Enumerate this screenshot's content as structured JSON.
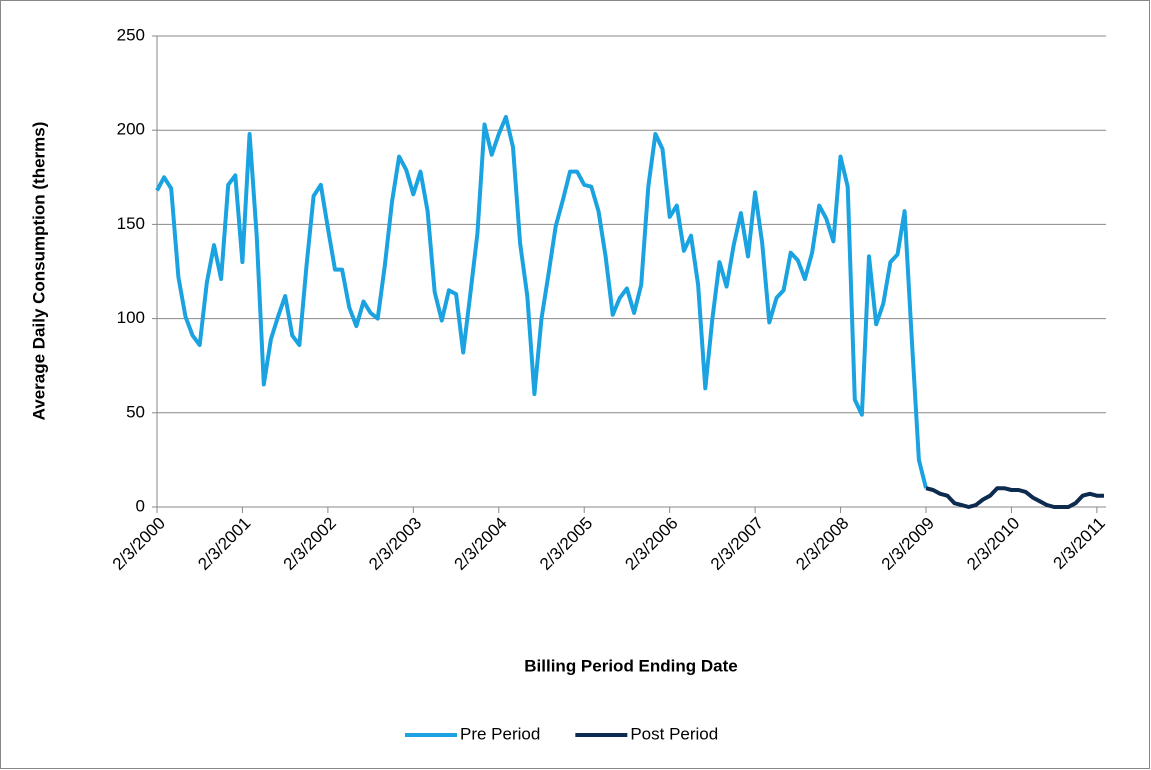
{
  "chart_data": {
    "type": "line",
    "y_label": "Average Daily Consumption (therms)",
    "x_label": "Billing Period Ending Date",
    "categories": [
      "2/3/2000",
      null,
      null,
      null,
      null,
      null,
      null,
      null,
      null,
      null,
      null,
      null,
      "2/3/2001",
      null,
      null,
      null,
      null,
      null,
      null,
      null,
      null,
      null,
      null,
      null,
      "2/3/2002",
      null,
      null,
      null,
      null,
      null,
      null,
      null,
      null,
      null,
      null,
      null,
      "2/3/2003",
      null,
      null,
      null,
      null,
      null,
      null,
      null,
      null,
      null,
      null,
      null,
      "2/3/2004",
      null,
      null,
      null,
      null,
      null,
      null,
      null,
      null,
      null,
      null,
      null,
      "2/3/2005",
      null,
      null,
      null,
      null,
      null,
      null,
      null,
      null,
      null,
      null,
      null,
      "2/3/2006",
      null,
      null,
      null,
      null,
      null,
      null,
      null,
      null,
      null,
      null,
      null,
      "2/3/2007",
      null,
      null,
      null,
      null,
      null,
      null,
      null,
      null,
      null,
      null,
      null,
      "2/3/2008",
      null,
      null,
      null,
      null,
      null,
      null,
      null,
      null,
      null,
      null,
      null,
      "2/3/2009",
      null,
      null,
      null,
      null,
      null,
      null,
      null,
      null,
      null,
      null,
      null,
      "2/3/2010",
      null,
      null,
      null,
      null,
      null,
      null,
      null,
      null,
      null,
      null,
      null,
      "2/3/2011",
      null
    ],
    "series": [
      {
        "name": "Pre Period",
        "color": "#1aa3e0",
        "values": [
          168,
          175,
          169,
          122,
          101,
          91,
          86,
          119,
          139,
          121,
          171,
          176,
          130,
          198,
          144,
          65,
          89,
          101,
          112,
          91,
          86,
          128,
          165,
          171,
          148,
          126,
          126,
          106,
          96,
          109,
          103,
          100,
          128,
          162,
          186,
          179,
          166,
          178,
          157,
          114,
          99,
          115,
          113,
          82,
          113,
          145,
          203,
          187,
          198,
          207,
          191,
          140,
          112,
          60,
          100,
          124,
          149,
          163,
          178,
          178,
          171,
          170,
          157,
          133,
          102,
          111,
          116,
          103,
          118,
          170,
          198,
          190,
          154,
          160,
          136,
          144,
          118,
          63,
          100,
          130,
          117,
          139,
          156,
          133,
          167,
          140,
          98,
          111,
          115,
          135,
          131,
          121,
          135,
          160,
          153,
          141,
          186,
          170,
          57,
          49,
          133,
          97,
          108,
          130,
          134,
          157,
          89,
          25,
          10,
          null,
          null,
          null,
          null,
          null,
          null,
          null,
          null,
          null,
          null,
          null,
          null,
          null,
          null,
          null,
          null,
          null,
          null,
          null,
          null,
          null,
          null,
          null,
          null,
          null
        ]
      },
      {
        "name": "Post Period",
        "color": "#0d2a4f",
        "values": [
          null,
          null,
          null,
          null,
          null,
          null,
          null,
          null,
          null,
          null,
          null,
          null,
          null,
          null,
          null,
          null,
          null,
          null,
          null,
          null,
          null,
          null,
          null,
          null,
          null,
          null,
          null,
          null,
          null,
          null,
          null,
          null,
          null,
          null,
          null,
          null,
          null,
          null,
          null,
          null,
          null,
          null,
          null,
          null,
          null,
          null,
          null,
          null,
          null,
          null,
          null,
          null,
          null,
          null,
          null,
          null,
          null,
          null,
          null,
          null,
          null,
          null,
          null,
          null,
          null,
          null,
          null,
          null,
          null,
          null,
          null,
          null,
          null,
          null,
          null,
          null,
          null,
          null,
          null,
          null,
          null,
          null,
          null,
          null,
          null,
          null,
          null,
          null,
          null,
          null,
          null,
          null,
          null,
          null,
          null,
          null,
          null,
          null,
          null,
          null,
          null,
          null,
          null,
          null,
          null,
          null,
          null,
          null,
          10,
          9,
          7,
          6,
          2,
          1,
          0,
          1,
          4,
          6,
          10,
          10,
          9,
          9,
          8,
          5,
          3,
          1,
          0,
          0,
          0,
          2,
          6,
          7,
          6,
          6
        ]
      }
    ],
    "ylim": [
      0,
      250
    ],
    "yticks": [
      0,
      50,
      100,
      150,
      200,
      250
    ],
    "grid": true,
    "legend": "bottom"
  }
}
